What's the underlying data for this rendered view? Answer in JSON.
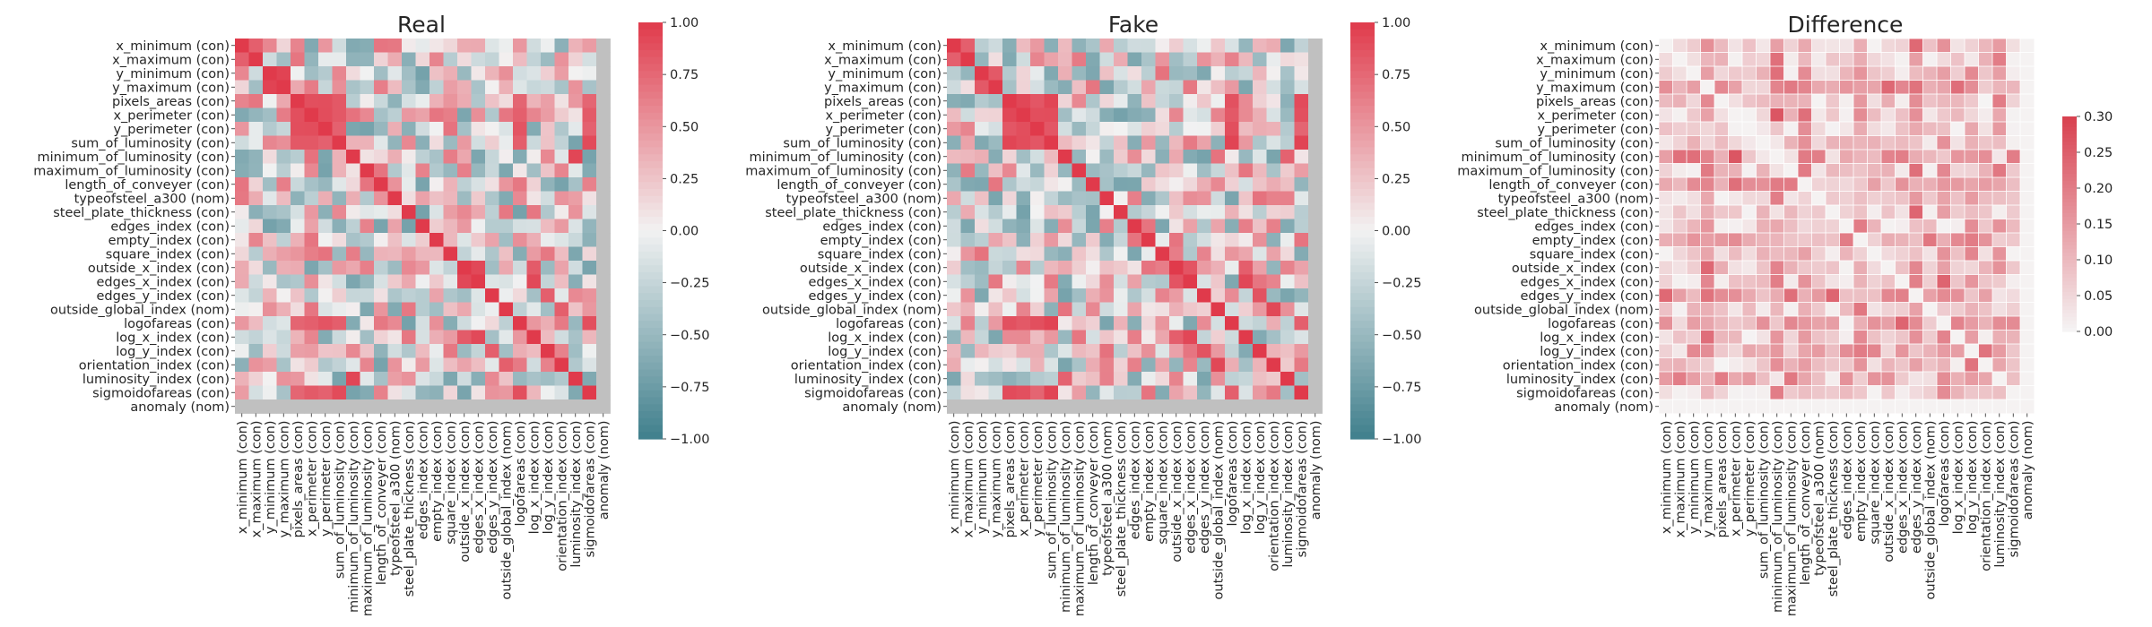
{
  "chart_data": [
    {
      "type": "heatmap",
      "title": "Real",
      "labels": [
        "x_minimum (con)",
        "x_maximum (con)",
        "y_minimum (con)",
        "y_maximum (con)",
        "pixels_areas (con)",
        "x_perimeter (con)",
        "y_perimeter (con)",
        "sum_of_luminosity (con)",
        "minimum_of_luminosity (con)",
        "maximum_of_luminosity (con)",
        "length_of_conveyer (con)",
        "typeofsteel_a300 (nom)",
        "steel_plate_thickness (con)",
        "edges_index (con)",
        "empty_index (con)",
        "square_index (con)",
        "outside_x_index (con)",
        "edges_x_index (con)",
        "edges_y_index (con)",
        "outside_global_index (nom)",
        "logofareas (con)",
        "log_x_index (con)",
        "log_y_index (con)",
        "orientation_index (con)",
        "luminosity_index (con)",
        "sigmoidofareas (con)",
        "anomaly (nom)"
      ],
      "colorbar": {
        "min": -1.0,
        "max": 1.0,
        "ticks": [
          "1.00",
          "0.75",
          "0.50",
          "0.25",
          "0.00",
          "−0.25",
          "−0.50",
          "−0.75",
          "−1.00"
        ]
      },
      "missing_value_color": "#c0c0c0",
      "seed": 7
    },
    {
      "type": "heatmap",
      "title": "Fake",
      "labels": [
        "x_minimum (con)",
        "x_maximum (con)",
        "y_minimum (con)",
        "y_maximum (con)",
        "pixels_areas (con)",
        "x_perimeter (con)",
        "y_perimeter (con)",
        "sum_of_luminosity (con)",
        "minimum_of_luminosity (con)",
        "maximum_of_luminosity (con)",
        "length_of_conveyer (con)",
        "typeofsteel_a300 (nom)",
        "steel_plate_thickness (con)",
        "edges_index (con)",
        "empty_index (con)",
        "square_index (con)",
        "outside_x_index (con)",
        "edges_x_index (con)",
        "edges_y_index (con)",
        "outside_global_index (nom)",
        "logofareas (con)",
        "log_x_index (con)",
        "log_y_index (con)",
        "orientation_index (con)",
        "luminosity_index (con)",
        "sigmoidofareas (con)",
        "anomaly (nom)"
      ],
      "colorbar": {
        "min": -1.0,
        "max": 1.0,
        "ticks": [
          "1.00",
          "0.75",
          "0.50",
          "0.25",
          "0.00",
          "−0.25",
          "−0.50",
          "−0.75",
          "−1.00"
        ]
      },
      "missing_value_color": "#c0c0c0",
      "seed": 11
    },
    {
      "type": "heatmap",
      "title": "Difference",
      "labels": [
        "x_minimum (con)",
        "x_maximum (con)",
        "y_minimum (con)",
        "y_maximum (con)",
        "pixels_areas (con)",
        "x_perimeter (con)",
        "y_perimeter (con)",
        "sum_of_luminosity (con)",
        "minimum_of_luminosity (con)",
        "maximum_of_luminosity (con)",
        "length_of_conveyer (con)",
        "typeofsteel_a300 (nom)",
        "steel_plate_thickness (con)",
        "edges_index (con)",
        "empty_index (con)",
        "square_index (con)",
        "outside_x_index (con)",
        "edges_x_index (con)",
        "edges_y_index (con)",
        "outside_global_index (nom)",
        "logofareas (con)",
        "log_x_index (con)",
        "log_y_index (con)",
        "orientation_index (con)",
        "luminosity_index (con)",
        "sigmoidofareas (con)",
        "anomaly (nom)"
      ],
      "colorbar": {
        "min": 0.0,
        "max": 0.3,
        "ticks": [
          "0.30",
          "0.25",
          "0.20",
          "0.15",
          "0.10",
          "0.05",
          "0.00"
        ]
      },
      "seed": 23
    }
  ],
  "colors": {
    "diverging_low": "#3f7f8c",
    "diverging_mid": "#f2f2f2",
    "diverging_high": "#e03a4b",
    "sequential_low": "#f5f5f5",
    "sequential_high": "#d8404f",
    "missing": "#c0c0c0"
  }
}
